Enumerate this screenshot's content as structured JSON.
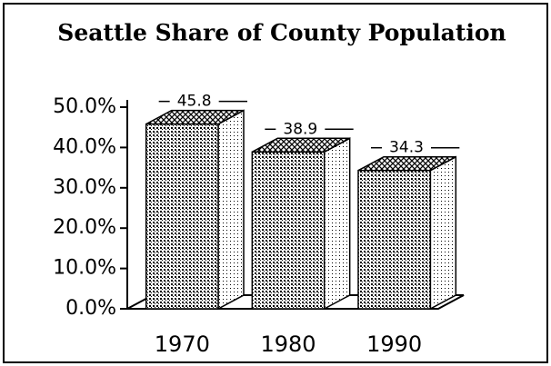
{
  "chart_data": {
    "type": "bar3d",
    "title": "Seattle Share of County Population",
    "categories": [
      "1970",
      "1980",
      "1990"
    ],
    "values": [
      45.8,
      38.9,
      34.3
    ],
    "color": "#000000",
    "ylim": [
      0,
      50
    ],
    "yticks": [
      {
        "value": 0,
        "label": "0.0%"
      },
      {
        "value": 10,
        "label": "10.0%"
      },
      {
        "value": 20,
        "label": "20.0%"
      },
      {
        "value": 30,
        "label": "30.0%"
      },
      {
        "value": 40,
        "label": "40.0%"
      },
      {
        "value": 50,
        "label": "50.0%"
      }
    ],
    "grid": false
  }
}
